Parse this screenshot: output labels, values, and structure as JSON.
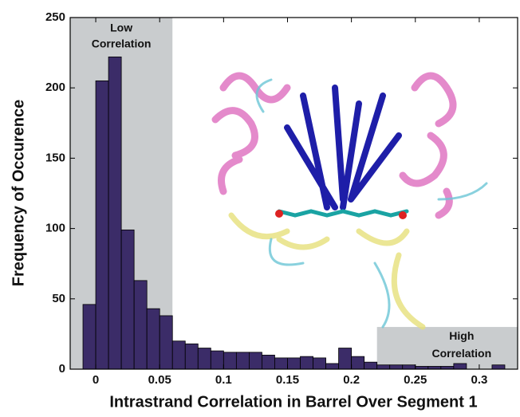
{
  "chart_data": {
    "type": "histogram",
    "xlabel": "Intrastrand Correlation in Barrel Over Segment 1",
    "ylabel": "Frequency of Occurence",
    "bins": [
      -0.01,
      0,
      0.01,
      0.02,
      0.03,
      0.04,
      0.05,
      0.06,
      0.07,
      0.08,
      0.09,
      0.1,
      0.11,
      0.12,
      0.13,
      0.14,
      0.15,
      0.16,
      0.17,
      0.18,
      0.19,
      0.2,
      0.21,
      0.22,
      0.23,
      0.24,
      0.25,
      0.26,
      0.27,
      0.28,
      0.29,
      0.3,
      0.31,
      0.32
    ],
    "values": [
      46,
      205,
      222,
      99,
      63,
      43,
      38,
      20,
      18,
      15,
      13,
      12,
      12,
      12,
      10,
      8,
      8,
      9,
      8,
      4,
      15,
      9,
      5,
      3,
      3,
      3,
      2,
      2,
      2,
      4,
      0,
      0,
      3
    ],
    "color": "#3b2c68",
    "xlim": [
      -0.02,
      0.33
    ],
    "ylim": [
      0,
      250
    ],
    "xticks": [
      0,
      0.05,
      0.1,
      0.15,
      0.2,
      0.25,
      0.3
    ],
    "yticks": [
      0,
      50,
      100,
      150,
      200,
      250
    ],
    "grid": false,
    "regions": [
      {
        "lines": [
          "Low",
          "Correlation"
        ],
        "xrange": [
          -0.02,
          0.06
        ],
        "yrange": [
          0,
          250
        ],
        "color": "#c9ccce"
      },
      {
        "lines": [
          "High",
          "Correlation"
        ],
        "xrange": [
          0.22,
          0.33
        ],
        "yrange": [
          0,
          30
        ],
        "color": "#c9ccce"
      }
    ]
  }
}
